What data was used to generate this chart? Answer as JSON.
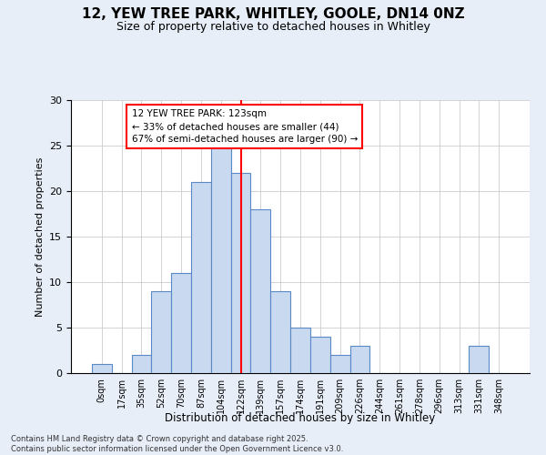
{
  "title_line1": "12, YEW TREE PARK, WHITLEY, GOOLE, DN14 0NZ",
  "title_line2": "Size of property relative to detached houses in Whitley",
  "xlabel": "Distribution of detached houses by size in Whitley",
  "ylabel": "Number of detached properties",
  "bar_labels": [
    "0sqm",
    "17sqm",
    "35sqm",
    "52sqm",
    "70sqm",
    "87sqm",
    "104sqm",
    "122sqm",
    "139sqm",
    "157sqm",
    "174sqm",
    "191sqm",
    "209sqm",
    "226sqm",
    "244sqm",
    "261sqm",
    "278sqm",
    "296sqm",
    "313sqm",
    "331sqm",
    "348sqm"
  ],
  "bar_heights": [
    1,
    0,
    2,
    9,
    11,
    21,
    25,
    22,
    18,
    9,
    5,
    4,
    2,
    3,
    0,
    0,
    0,
    0,
    0,
    3,
    0
  ],
  "bar_color": "#c9d9f0",
  "bar_edge_color": "#5a8ac6",
  "vline_x_index": 7,
  "vline_color": "red",
  "annotation_text": "12 YEW TREE PARK: 123sqm\n← 33% of detached houses are smaller (44)\n67% of semi-detached houses are larger (90) →",
  "annotation_box_color": "white",
  "annotation_box_edge": "red",
  "ylim": [
    0,
    30
  ],
  "yticks": [
    0,
    5,
    10,
    15,
    20,
    25,
    30
  ],
  "footnote": "Contains HM Land Registry data © Crown copyright and database right 2025.\nContains public sector information licensed under the Open Government Licence v3.0.",
  "bg_color": "#e8eef8",
  "plot_bg_color": "#ffffff",
  "title_fontsize": 11,
  "subtitle_fontsize": 9
}
